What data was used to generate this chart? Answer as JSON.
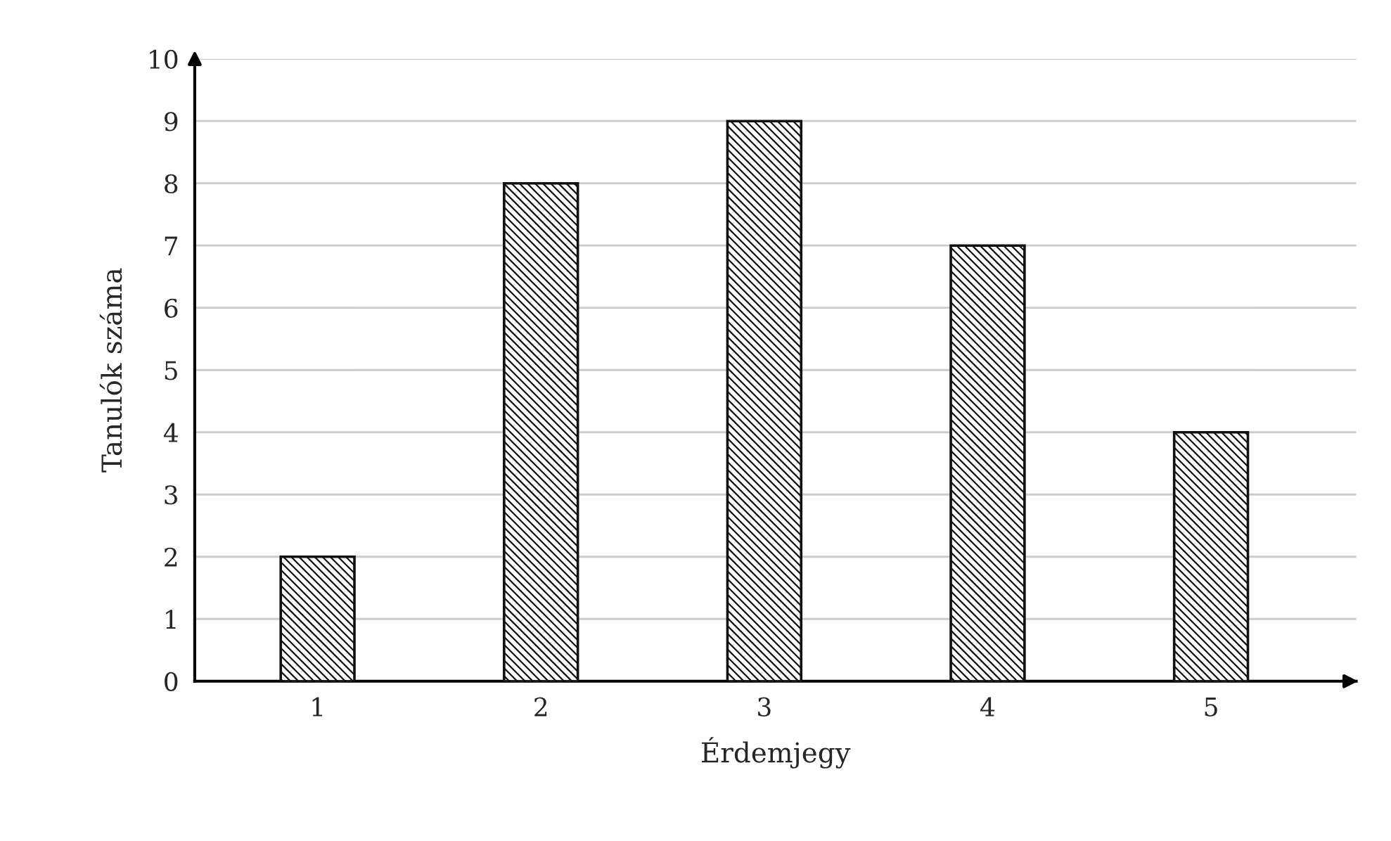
{
  "chart_data": {
    "type": "bar",
    "xlabel": "Érdemjegy",
    "ylabel": "Tanulók száma",
    "categories": [
      "1",
      "2",
      "3",
      "4",
      "5"
    ],
    "values": [
      2,
      8,
      9,
      7,
      4
    ],
    "color": "#111111",
    "ylim": [
      0,
      10
    ],
    "yticks": [
      0,
      1,
      2,
      3,
      4,
      5,
      6,
      7,
      8,
      9,
      10
    ],
    "grid": "y",
    "legend": false
  }
}
